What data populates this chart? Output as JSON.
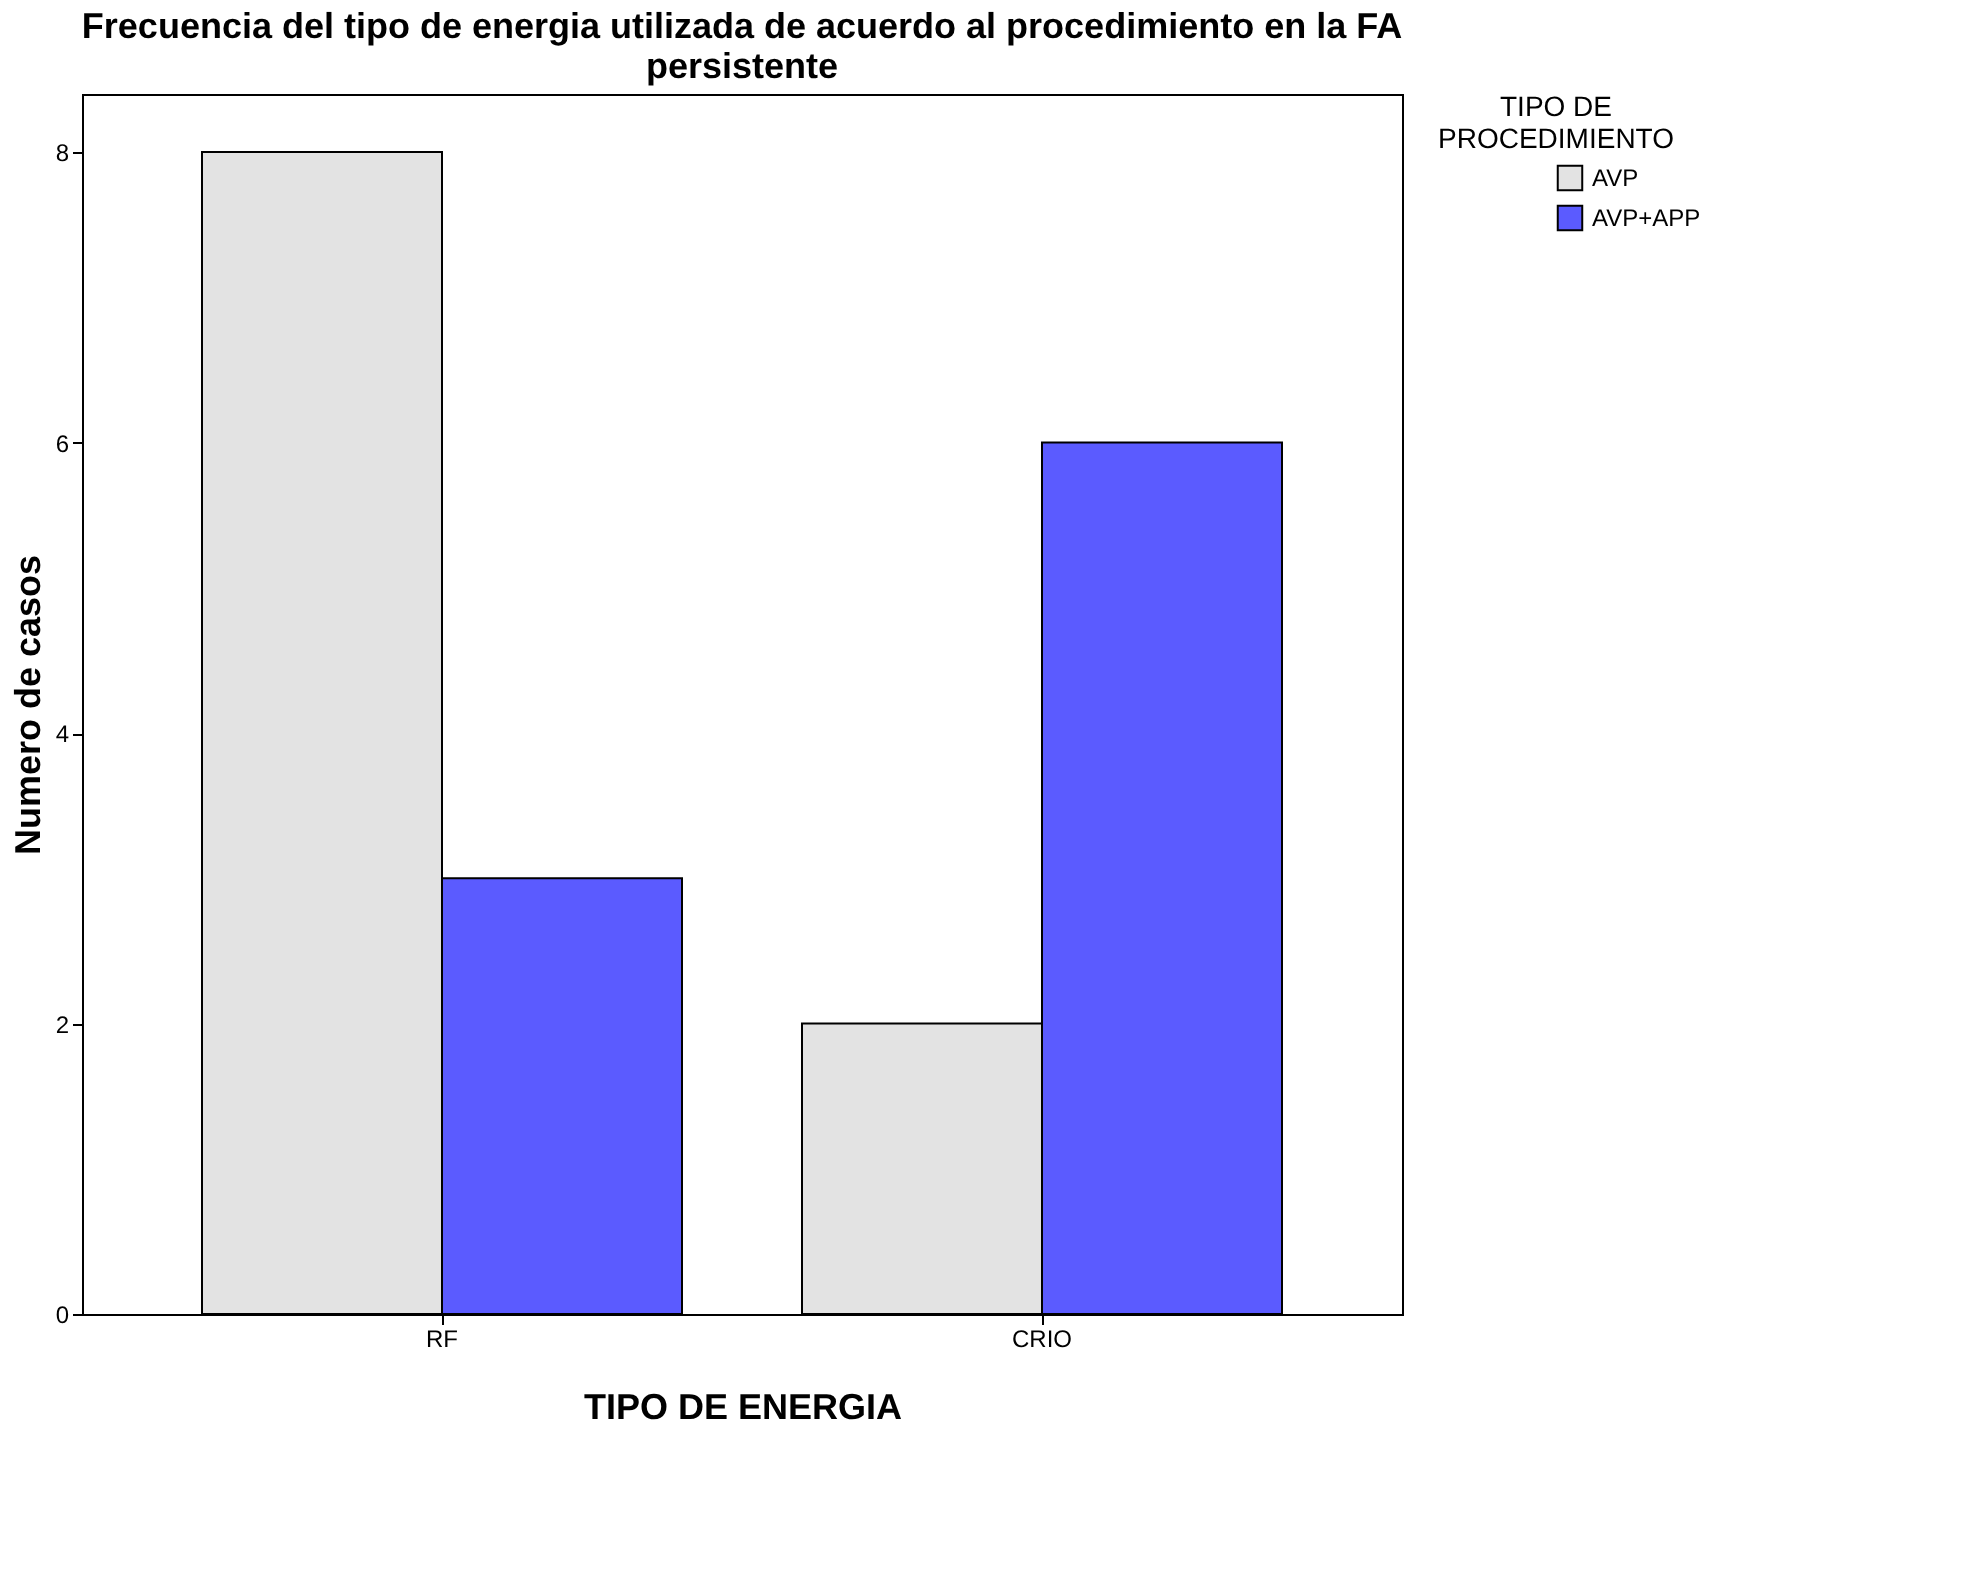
{
  "chart_data": {
    "type": "bar",
    "title": "Frecuencia del tipo de energia utilizada de acuerdo al procedimiento en la FA persistente",
    "xlabel": "TIPO DE ENERGIA",
    "ylabel": "Numero de casos",
    "legend_title": "TIPO DE PROCEDIMIENTO",
    "categories": [
      "RF",
      "CRIO"
    ],
    "series": [
      {
        "name": "AVP",
        "color": "#e3e3e3",
        "values": [
          8,
          2
        ]
      },
      {
        "name": "AVP+APP",
        "color": "#5b5bff",
        "values": [
          3,
          6
        ]
      }
    ],
    "ylim": [
      0,
      8.4
    ],
    "yticks": [
      0,
      2,
      4,
      6,
      8
    ],
    "grid": false,
    "legend": "right"
  }
}
